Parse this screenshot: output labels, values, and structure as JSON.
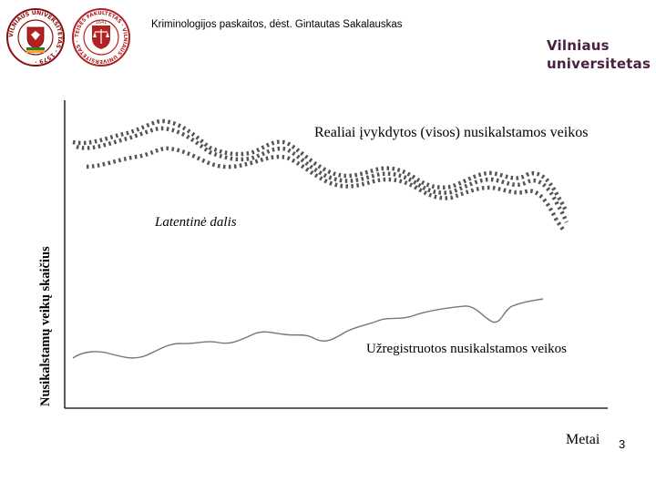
{
  "header": {
    "course": "Kriminologijos paskaitos, dėst. Gintautas Sakalauskas",
    "brand_line1": "Vilniaus",
    "brand_line2": "universitetas",
    "logo_left_text": "VILNIAUS UNIVERSITETAS · 1579 ·",
    "logo_right_text": "TEISĖS FAKULTETAS · VILNIAUS UNIVERSITETAS ·",
    "logo_right_year": "1641"
  },
  "diagram": {
    "y_axis_label": "Nusikalstamų veikų skaičius",
    "x_axis_label": "Metai",
    "real_crimes_label": "Realiai įvykdytos (visos) nusikalstamos veikos",
    "latent_part_label": "Latentinė dalis",
    "registered_label": "Užregistruotos nusikalstamos veikos"
  },
  "colors": {
    "dotted_curves": "#555555",
    "solid_curve": "#777777",
    "axis": "#000000",
    "brand": "#4a2040",
    "logo_red": "#b22222"
  },
  "slide_number": "3"
}
